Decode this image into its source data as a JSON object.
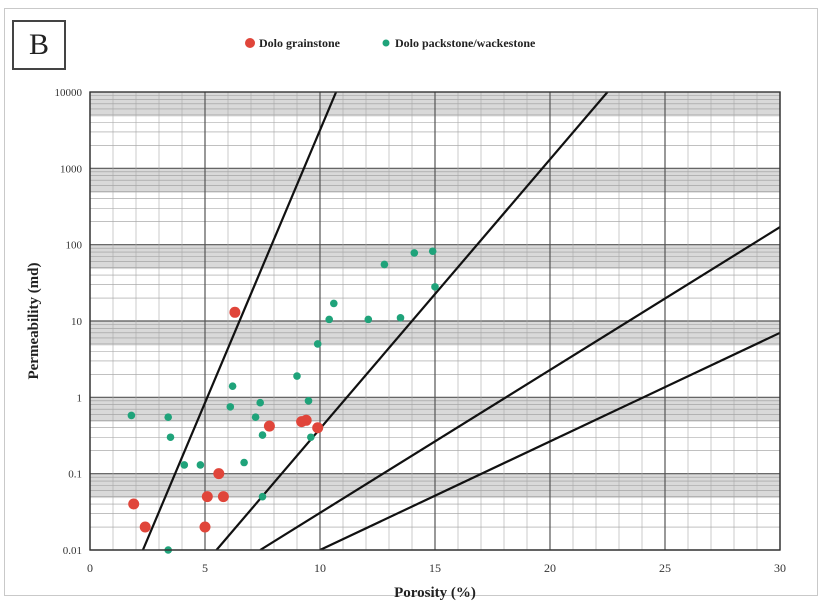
{
  "panel_label": "B",
  "chart_data": {
    "type": "scatter",
    "xlabel": "Porosity (%)",
    "ylabel": "Permeability (md)",
    "xlim": [
      0,
      30
    ],
    "ylim": [
      0.01,
      10000
    ],
    "yscale": "log",
    "grid": true,
    "legend_position": "top",
    "x_ticks": [
      "0",
      "5",
      "10",
      "15",
      "20",
      "25",
      "30"
    ],
    "y_ticks": [
      "0.01",
      "0.1",
      "1",
      "10",
      "100",
      "1000",
      "10000"
    ],
    "series": [
      {
        "name": "Dolo grainstone",
        "color": "#e0453a",
        "points": [
          {
            "x": 1.9,
            "y": 0.04
          },
          {
            "x": 2.4,
            "y": 0.02
          },
          {
            "x": 5.0,
            "y": 0.02
          },
          {
            "x": 5.1,
            "y": 0.05
          },
          {
            "x": 5.6,
            "y": 0.1
          },
          {
            "x": 5.8,
            "y": 0.05
          },
          {
            "x": 6.3,
            "y": 13
          },
          {
            "x": 7.8,
            "y": 0.42
          },
          {
            "x": 9.2,
            "y": 0.48
          },
          {
            "x": 9.4,
            "y": 0.5
          },
          {
            "x": 9.9,
            "y": 0.4
          }
        ]
      },
      {
        "name": "Dolo packstone/wackestone",
        "color": "#1fa37a",
        "points": [
          {
            "x": 1.8,
            "y": 0.58
          },
          {
            "x": 3.4,
            "y": 0.55
          },
          {
            "x": 3.5,
            "y": 0.3
          },
          {
            "x": 3.4,
            "y": 0.01
          },
          {
            "x": 4.1,
            "y": 0.13
          },
          {
            "x": 4.8,
            "y": 0.13
          },
          {
            "x": 6.1,
            "y": 0.75
          },
          {
            "x": 6.2,
            "y": 1.4
          },
          {
            "x": 6.7,
            "y": 0.14
          },
          {
            "x": 7.2,
            "y": 0.55
          },
          {
            "x": 7.4,
            "y": 0.85
          },
          {
            "x": 7.5,
            "y": 0.32
          },
          {
            "x": 7.5,
            "y": 0.05
          },
          {
            "x": 9.0,
            "y": 1.9
          },
          {
            "x": 9.5,
            "y": 0.9
          },
          {
            "x": 9.6,
            "y": 0.3
          },
          {
            "x": 9.9,
            "y": 5
          },
          {
            "x": 10.4,
            "y": 10.5
          },
          {
            "x": 10.6,
            "y": 17
          },
          {
            "x": 12.1,
            "y": 10.5
          },
          {
            "x": 13.5,
            "y": 11
          },
          {
            "x": 12.8,
            "y": 55
          },
          {
            "x": 14.1,
            "y": 78
          },
          {
            "x": 14.9,
            "y": 82
          },
          {
            "x": 15.0,
            "y": 28
          }
        ]
      }
    ],
    "reference_lines": [
      {
        "x1": 2.3,
        "y1": 0.01,
        "x2": 10.7,
        "y2": 10000
      },
      {
        "x1": 5.5,
        "y1": 0.01,
        "x2": 22.5,
        "y2": 10000
      },
      {
        "x1": 7.4,
        "y1": 0.01,
        "x2": 30,
        "y2": 170
      },
      {
        "x1": 10.0,
        "y1": 0.01,
        "x2": 30,
        "y2": 7
      }
    ]
  }
}
